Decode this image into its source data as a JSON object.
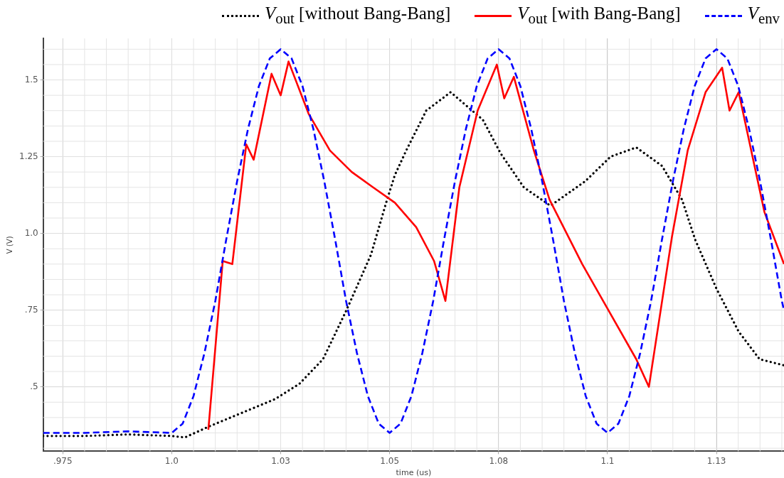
{
  "chart_data": {
    "type": "line",
    "xlabel": "time (us)",
    "ylabel": "V (V)",
    "legend": "top",
    "grid": true,
    "marker": "none",
    "xlim": [
      0.9705,
      1.1405
    ],
    "ylim": [
      0.29,
      1.635
    ],
    "xticks": [
      {
        "value": 0.975,
        "label": ".975"
      },
      {
        "value": 1.0,
        "label": "1.0"
      },
      {
        "value": 1.025,
        "label": "1.03"
      },
      {
        "value": 1.05,
        "label": "1.05"
      },
      {
        "value": 1.075,
        "label": "1.08"
      },
      {
        "value": 1.1,
        "label": "1.1"
      },
      {
        "value": 1.125,
        "label": "1.13"
      }
    ],
    "yticks": [
      {
        "value": 0.5,
        "label": ".5"
      },
      {
        "value": 0.75,
        "label": ".75"
      },
      {
        "value": 1.0,
        "label": "1.0"
      },
      {
        "value": 1.25,
        "label": "1.25"
      },
      {
        "value": 1.5,
        "label": "1.5"
      }
    ],
    "series": [
      {
        "name": "V$_{out}$ [without Bang-Bang]",
        "color": "#000000",
        "line_style": "dotted",
        "x": [
          0.9705,
          0.98,
          0.99,
          1.0,
          1.003,
          1.0084,
          1.0237,
          1.0293,
          1.0347,
          1.0401,
          1.0457,
          1.0492,
          1.0512,
          1.0538,
          1.0584,
          1.064,
          1.0714,
          1.0755,
          1.0808,
          1.0869,
          1.0949,
          1.1007,
          1.1066,
          1.1125,
          1.1171,
          1.1201,
          1.125,
          1.1301,
          1.1349,
          1.1405
        ],
        "values": [
          0.34,
          0.34,
          0.345,
          0.34,
          0.335,
          0.37,
          0.46,
          0.51,
          0.59,
          0.75,
          0.93,
          1.1,
          1.19,
          1.27,
          1.4,
          1.46,
          1.37,
          1.26,
          1.15,
          1.09,
          1.17,
          1.25,
          1.28,
          1.22,
          1.11,
          0.98,
          0.82,
          0.68,
          0.59,
          0.57
        ]
      },
      {
        "name": "V$_{out}$  [with Bang-Bang]",
        "color": "#ff0000",
        "line_style": "solid",
        "x": [
          1.0084,
          1.0117,
          1.0139,
          1.0171,
          1.0188,
          1.0229,
          1.025,
          1.0268,
          1.0314,
          1.0363,
          1.0413,
          1.0462,
          1.0512,
          1.0561,
          1.0602,
          1.0628,
          1.066,
          1.0702,
          1.0746,
          1.0763,
          1.0785,
          1.0831,
          1.0867,
          1.0942,
          1.0998,
          1.1066,
          1.1095,
          1.1148,
          1.1184,
          1.1225,
          1.1263,
          1.128,
          1.1301,
          1.136,
          1.1405
        ],
        "values": [
          0.36,
          0.91,
          0.9,
          1.29,
          1.24,
          1.52,
          1.45,
          1.56,
          1.39,
          1.27,
          1.2,
          1.15,
          1.1,
          1.02,
          0.91,
          0.78,
          1.15,
          1.4,
          1.55,
          1.44,
          1.51,
          1.27,
          1.11,
          0.9,
          0.76,
          0.59,
          0.5,
          0.99,
          1.27,
          1.46,
          1.54,
          1.4,
          1.46,
          1.07,
          0.9
        ]
      },
      {
        "name": "V$_{env}$",
        "color": "#0000ff",
        "line_style": "dashed",
        "x": [
          0.9705,
          0.98,
          0.99,
          1.0,
          1.0025,
          1.005,
          1.0075,
          1.01,
          1.0125,
          1.015,
          1.0175,
          1.02,
          1.0225,
          1.025,
          1.0275,
          1.03,
          1.0325,
          1.035,
          1.0375,
          1.04,
          1.0425,
          1.045,
          1.0475,
          1.05,
          1.0525,
          1.055,
          1.0575,
          1.06,
          1.0625,
          1.065,
          1.0675,
          1.07,
          1.0725,
          1.075,
          1.0775,
          1.08,
          1.0825,
          1.085,
          1.0875,
          1.09,
          1.0925,
          1.095,
          1.0975,
          1.1,
          1.1025,
          1.105,
          1.1075,
          1.11,
          1.1125,
          1.115,
          1.1175,
          1.12,
          1.1225,
          1.125,
          1.1275,
          1.13,
          1.1325,
          1.135,
          1.1375,
          1.14,
          1.1405
        ],
        "values": [
          0.35,
          0.35,
          0.355,
          0.35,
          0.38,
          0.47,
          0.61,
          0.78,
          0.98,
          1.17,
          1.34,
          1.48,
          1.57,
          1.6,
          1.57,
          1.48,
          1.34,
          1.17,
          0.98,
          0.78,
          0.61,
          0.47,
          0.38,
          0.35,
          0.38,
          0.47,
          0.61,
          0.78,
          0.98,
          1.17,
          1.34,
          1.48,
          1.57,
          1.6,
          1.57,
          1.48,
          1.34,
          1.17,
          0.98,
          0.78,
          0.61,
          0.47,
          0.38,
          0.35,
          0.38,
          0.47,
          0.61,
          0.78,
          0.98,
          1.17,
          1.34,
          1.48,
          1.57,
          1.6,
          1.57,
          1.48,
          1.34,
          1.17,
          0.98,
          0.78,
          0.75
        ]
      }
    ]
  }
}
